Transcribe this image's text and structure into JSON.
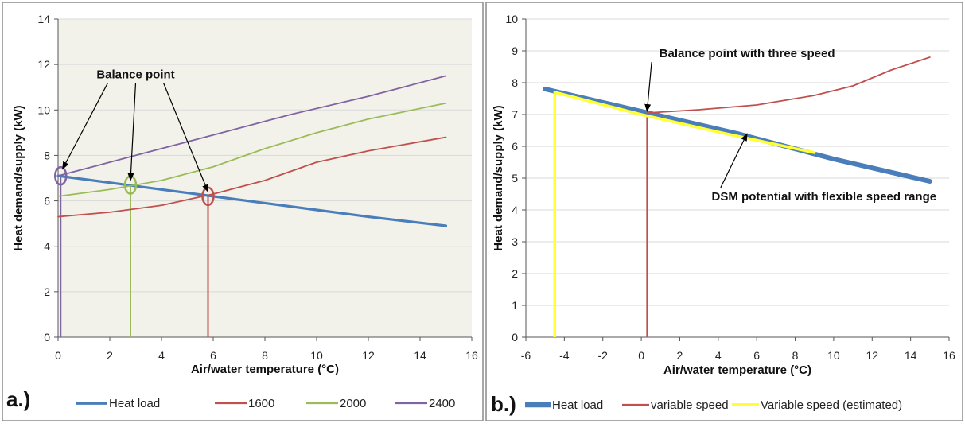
{
  "chart_data": [
    {
      "panel_label": "a.)",
      "type": "line",
      "title": "",
      "xlabel": "Air/water temperature (°C)",
      "ylabel": "Heat demand/supply (kW)",
      "xlim": [
        0,
        16
      ],
      "ylim": [
        0,
        14
      ],
      "x_ticks": [
        0,
        2,
        4,
        6,
        8,
        10,
        12,
        14,
        16
      ],
      "y_ticks": [
        0,
        2,
        4,
        6,
        8,
        10,
        12,
        14
      ],
      "grid": true,
      "legend_position": "bottom",
      "colors": {
        "plot_bg": "#f2f2ea",
        "grid": "#d9d9d9",
        "heat_load": "#4a7ebb",
        "s1600": "#c0504d",
        "s2000": "#9bbb59",
        "s2400": "#8064a2"
      },
      "series": [
        {
          "name": "Heat load",
          "color": "#4a7ebb",
          "width": 3.2,
          "x": [
            0,
            2,
            4,
            6,
            8,
            10,
            12,
            15
          ],
          "y": [
            7.1,
            6.8,
            6.5,
            6.2,
            5.9,
            5.6,
            5.3,
            4.9
          ]
        },
        {
          "name": "1600",
          "color": "#c0504d",
          "width": 1.8,
          "x": [
            0,
            2,
            4,
            6,
            8,
            10,
            12,
            15
          ],
          "y": [
            5.3,
            5.5,
            5.8,
            6.3,
            6.9,
            7.7,
            8.2,
            8.8
          ]
        },
        {
          "name": "2000",
          "color": "#9bbb59",
          "width": 1.8,
          "x": [
            0,
            2,
            4,
            6,
            8,
            10,
            12,
            15
          ],
          "y": [
            6.2,
            6.5,
            6.9,
            7.5,
            8.3,
            9.0,
            9.6,
            10.3
          ]
        },
        {
          "name": "2400",
          "color": "#8064a2",
          "width": 1.8,
          "x": [
            0,
            3,
            6,
            9,
            12,
            15
          ],
          "y": [
            7.1,
            8.0,
            8.9,
            9.8,
            10.6,
            11.5
          ]
        }
      ],
      "drop_lines": [
        {
          "x": 0.1,
          "y": 7.1,
          "color": "#8064a2"
        },
        {
          "x": 2.8,
          "y": 6.7,
          "color": "#9bbb59"
        },
        {
          "x": 5.8,
          "y": 6.2,
          "color": "#c0504d"
        }
      ],
      "circles": [
        {
          "x": 0.1,
          "y": 7.1,
          "color": "#8064a2"
        },
        {
          "x": 2.8,
          "y": 6.7,
          "color": "#9bbb59"
        },
        {
          "x": 5.8,
          "y": 6.2,
          "color": "#c0504d"
        }
      ],
      "annotation": {
        "text": "Balance point",
        "x": 3.0,
        "y": 11.4,
        "targets": [
          {
            "x": 0.05,
            "y": 7.4
          },
          {
            "x": 2.8,
            "y": 6.9
          },
          {
            "x": 5.8,
            "y": 6.4
          }
        ]
      }
    },
    {
      "panel_label": "b.)",
      "type": "line",
      "title": "",
      "xlabel": "Air/water temperature (°C)",
      "ylabel": "Heat demand/supply (kW)",
      "xlim": [
        -6,
        16
      ],
      "ylim": [
        0,
        10
      ],
      "x_ticks": [
        -6,
        -4,
        -2,
        0,
        2,
        4,
        6,
        8,
        10,
        12,
        14,
        16
      ],
      "y_ticks": [
        0,
        1,
        2,
        3,
        4,
        5,
        6,
        7,
        8,
        9,
        10
      ],
      "grid": true,
      "legend_position": "bottom",
      "colors": {
        "plot_bg": "#ffffff",
        "grid": "#d9d9d9",
        "heat_load": "#4a7ebb",
        "variable": "#c0504d",
        "estimated": "#ffff33"
      },
      "series": [
        {
          "name": "Heat load",
          "color": "#4a7ebb",
          "width": 6,
          "x": [
            -5,
            0,
            5,
            10,
            15
          ],
          "y": [
            7.8,
            7.1,
            6.4,
            5.6,
            4.9
          ]
        },
        {
          "name": "variable speed",
          "color": "#c0504d",
          "width": 1.8,
          "x": [
            0.3,
            3,
            6,
            9,
            11,
            13,
            15
          ],
          "y": [
            7.05,
            7.15,
            7.3,
            7.6,
            7.9,
            8.4,
            8.8
          ]
        },
        {
          "name": "Variable speed (estimated)",
          "color": "#ffff33",
          "width": 3.5,
          "x": [
            -4.5,
            0,
            4,
            9
          ],
          "y": [
            7.7,
            7.0,
            6.45,
            5.8
          ]
        }
      ],
      "drop_lines": [
        {
          "x": 0.3,
          "y": 7.0,
          "color": "#c0504d"
        },
        {
          "x": -4.5,
          "y": 7.7,
          "color": "#ffff33"
        }
      ],
      "annotations": [
        {
          "text": "Balance point with three speed",
          "x": 5.5,
          "y": 8.8,
          "target": {
            "x": 0.3,
            "y": 7.1
          }
        },
        {
          "text": "DSM potential with flexible speed range",
          "x": 9.5,
          "y": 4.3,
          "target": {
            "x": 5.5,
            "y": 6.4
          }
        }
      ]
    }
  ]
}
